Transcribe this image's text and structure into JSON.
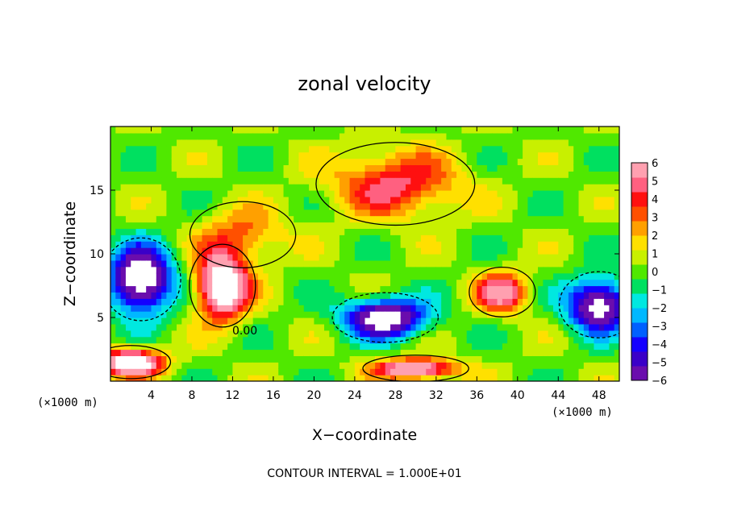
{
  "chart_data": {
    "type": "heatmap",
    "title": "zonal velocity",
    "xlabel": "X−coordinate",
    "ylabel": "Z−coordinate",
    "x_unit_left": "(×1000 m)",
    "x_unit_right": "(×1000 m)",
    "footer": "CONTOUR INTERVAL = 1.000E+01",
    "contour_label": "0.00",
    "xlim": [
      0,
      50
    ],
    "ylim": [
      0,
      20
    ],
    "x_ticks": [
      4,
      8,
      12,
      16,
      20,
      24,
      28,
      32,
      36,
      40,
      44,
      48
    ],
    "y_ticks": [
      5,
      10,
      15
    ],
    "colorbar": {
      "min": -6,
      "max": 6,
      "ticks": [
        6,
        5,
        4,
        3,
        2,
        1,
        0,
        -1,
        -2,
        -3,
        -4,
        -5,
        -6
      ],
      "labels": [
        "6",
        "5",
        "4",
        "3",
        "2",
        "1",
        "0",
        "−1",
        "−2",
        "−3",
        "−4",
        "−5",
        "−6"
      ],
      "colors": [
        "#6a0dad",
        "#3a00c8",
        "#1400ff",
        "#0060ff",
        "#00b8ff",
        "#00e8e0",
        "#00e060",
        "#50e800",
        "#c8f000",
        "#ffe000",
        "#ffa000",
        "#ff5000",
        "#ff1010",
        "#ff6080",
        "#ffa0b0"
      ]
    },
    "features": [
      {
        "kind": "high",
        "x": 28,
        "z": 15.5,
        "value": 4.5,
        "sx": 6,
        "sz": 2.5
      },
      {
        "kind": "high",
        "x": 13,
        "z": 11.5,
        "value": 3,
        "sx": 4,
        "sz": 2
      },
      {
        "kind": "high",
        "x": 38.5,
        "z": 7,
        "value": 5.5,
        "sx": 2.5,
        "sz": 1.5
      },
      {
        "kind": "low",
        "x": 3,
        "z": 8,
        "value": -9,
        "sx": 3,
        "sz": 2.5
      },
      {
        "kind": "low",
        "x": 27,
        "z": 5,
        "value": -8,
        "sx": 4,
        "sz": 1.5
      },
      {
        "kind": "low",
        "x": 48,
        "z": 6,
        "value": -8,
        "sx": 3,
        "sz": 2
      },
      {
        "kind": "high",
        "x": 11,
        "z": 7.5,
        "value": 9,
        "sx": 2.5,
        "sz": 2.5
      },
      {
        "kind": "high",
        "x": 2,
        "z": 1.5,
        "value": 9,
        "sx": 3,
        "sz": 1
      },
      {
        "kind": "high",
        "x": 30,
        "z": 1,
        "value": 7,
        "sx": 4,
        "sz": 0.8
      }
    ]
  }
}
